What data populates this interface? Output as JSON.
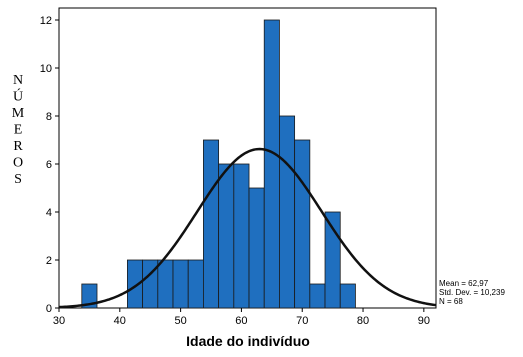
{
  "chart_data": {
    "type": "bar",
    "title": "",
    "xlabel": "Idade do indivíduo",
    "ylabel": "NÚMEROS",
    "xlim": [
      30,
      92
    ],
    "ylim": [
      0,
      12.5
    ],
    "x_ticks": [
      30,
      40,
      50,
      60,
      70,
      80,
      90
    ],
    "y_ticks": [
      0,
      2,
      4,
      6,
      8,
      10,
      12
    ],
    "bin_width": 2.5,
    "bins": [
      {
        "start": 33.75,
        "count": 1
      },
      {
        "start": 36.25,
        "count": 0
      },
      {
        "start": 38.75,
        "count": 0
      },
      {
        "start": 41.25,
        "count": 2
      },
      {
        "start": 43.75,
        "count": 2
      },
      {
        "start": 46.25,
        "count": 2
      },
      {
        "start": 48.75,
        "count": 2
      },
      {
        "start": 51.25,
        "count": 2
      },
      {
        "start": 53.75,
        "count": 7
      },
      {
        "start": 56.25,
        "count": 6
      },
      {
        "start": 58.75,
        "count": 6
      },
      {
        "start": 61.25,
        "count": 5
      },
      {
        "start": 63.75,
        "count": 12
      },
      {
        "start": 66.25,
        "count": 8
      },
      {
        "start": 68.75,
        "count": 7
      },
      {
        "start": 71.25,
        "count": 1
      },
      {
        "start": 73.75,
        "count": 4
      },
      {
        "start": 76.25,
        "count": 1
      }
    ],
    "normal_curve": {
      "mean": 62.97,
      "std_dev": 10.239,
      "n": 68
    },
    "stats_lines": [
      "Mean = 62,97",
      "Std. Dev. = 10,239",
      "N = 68"
    ],
    "bar_color": "#1f6fbf",
    "bar_edge_color": "#1a1a1a",
    "curve_color": "#111111",
    "grid": false,
    "legend": "none"
  }
}
